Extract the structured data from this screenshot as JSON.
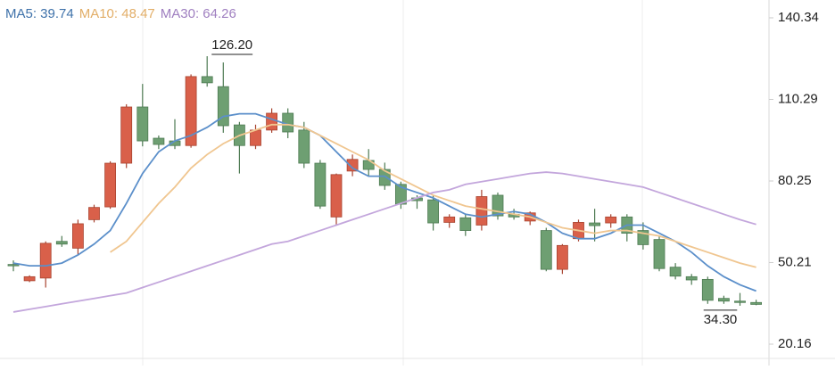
{
  "chart_data": {
    "type": "candlestick",
    "open": [
      49.5,
      43.5,
      44.5,
      58,
      55.5,
      66,
      70.7,
      86.8,
      107.5,
      96,
      95,
      93.3,
      118.7,
      115,
      100.9,
      93.3,
      99,
      105.2,
      99,
      86.8,
      67,
      83.9,
      87.8,
      84.5,
      79,
      74,
      73.3,
      65,
      66.7,
      64,
      75,
      68,
      65.5,
      62,
      47.7,
      59,
      64.8,
      64.8,
      67,
      62,
      58.7,
      48.5,
      45,
      44,
      37,
      36,
      35.5
    ],
    "high": [
      51,
      45.5,
      58,
      60,
      66,
      71.5,
      87.5,
      108.5,
      116,
      97,
      103,
      119.5,
      126.2,
      123.9,
      102,
      101,
      107,
      107,
      102,
      88,
      83,
      90,
      92,
      87,
      80,
      75,
      75,
      68,
      68,
      77,
      76,
      70,
      69,
      63,
      57,
      66,
      70,
      68,
      68,
      65,
      60,
      50,
      46,
      45,
      38,
      39,
      36.5
    ],
    "low": [
      47,
      43,
      41,
      56,
      53,
      65,
      70,
      85,
      93,
      92,
      92,
      92.5,
      115,
      98,
      83,
      92,
      98,
      96,
      85,
      70,
      64,
      82,
      82,
      77,
      70,
      70,
      62,
      63,
      60,
      62,
      66,
      66,
      64,
      47,
      46,
      58,
      58,
      63,
      58,
      55,
      47,
      44,
      42,
      35,
      35,
      34.3,
      34.5
    ],
    "close": [
      49,
      45,
      57.3,
      57,
      64.5,
      70.5,
      86.8,
      107.5,
      95,
      93.7,
      93.3,
      118.7,
      116.4,
      100.6,
      93.3,
      99,
      105.2,
      98.3,
      86.8,
      71,
      82.6,
      88.2,
      84.5,
      78.6,
      71.7,
      73,
      64.8,
      67,
      62,
      74.5,
      67.4,
      67,
      68.5,
      47.7,
      56.5,
      65,
      63.8,
      67,
      61,
      56.8,
      48,
      45.2,
      43.8,
      36.3,
      36,
      35.5,
      34.8
    ],
    "up_color": "#d9604a",
    "down_color": "#6e9f72",
    "ma": [
      {
        "name": "MA5",
        "legend": "MA5: 39.74",
        "color": "#5b8fca",
        "text_color": "#3f72aa",
        "values": [
          50,
          49,
          49,
          50,
          53,
          57,
          62,
          72,
          83,
          91,
          95,
          97,
          100,
          104,
          105,
          105,
          103,
          101,
          100,
          97,
          91,
          85,
          82,
          82,
          78,
          76,
          74,
          71,
          68,
          67,
          68,
          69,
          68,
          65,
          61,
          59,
          59,
          61,
          64,
          64,
          61,
          58,
          54,
          49,
          45,
          42,
          39.74
        ]
      },
      {
        "name": "MA10",
        "legend": "MA10: 48.47",
        "color": "#f0c690",
        "text_color": "#e2ae68",
        "values": [
          null,
          null,
          null,
          null,
          null,
          null,
          54,
          58,
          65,
          72,
          78,
          85,
          90,
          94,
          97,
          99,
          101,
          101,
          100,
          97,
          94,
          91,
          88,
          84,
          81,
          78,
          75,
          73,
          71,
          70,
          69,
          68,
          67,
          65,
          63,
          62,
          61,
          62,
          62,
          61,
          60,
          58,
          56,
          54,
          52,
          50,
          48.47
        ]
      },
      {
        "name": "MA30",
        "legend": "MA30: 64.26",
        "color": "#c3a6dc",
        "text_color": "#9f7fc0",
        "values": [
          32,
          33,
          34,
          35,
          36,
          37,
          38,
          39,
          41,
          43,
          45,
          47,
          49,
          51,
          53,
          55,
          57,
          58,
          60,
          62,
          64,
          66,
          68,
          70,
          72,
          74,
          76,
          77,
          79,
          80,
          81,
          82,
          83,
          83.5,
          83,
          82,
          81,
          80,
          79,
          78,
          76,
          74,
          72,
          70,
          68,
          66,
          64.26
        ]
      }
    ],
    "annotations": [
      {
        "value": 126.2,
        "label": "126.20"
      },
      {
        "value": 34.3,
        "label": "34.30"
      }
    ],
    "ylim": [
      15.56,
      146.9
    ],
    "yticks": [
      140.34,
      110.29,
      80.25,
      50.21,
      20.16
    ]
  }
}
